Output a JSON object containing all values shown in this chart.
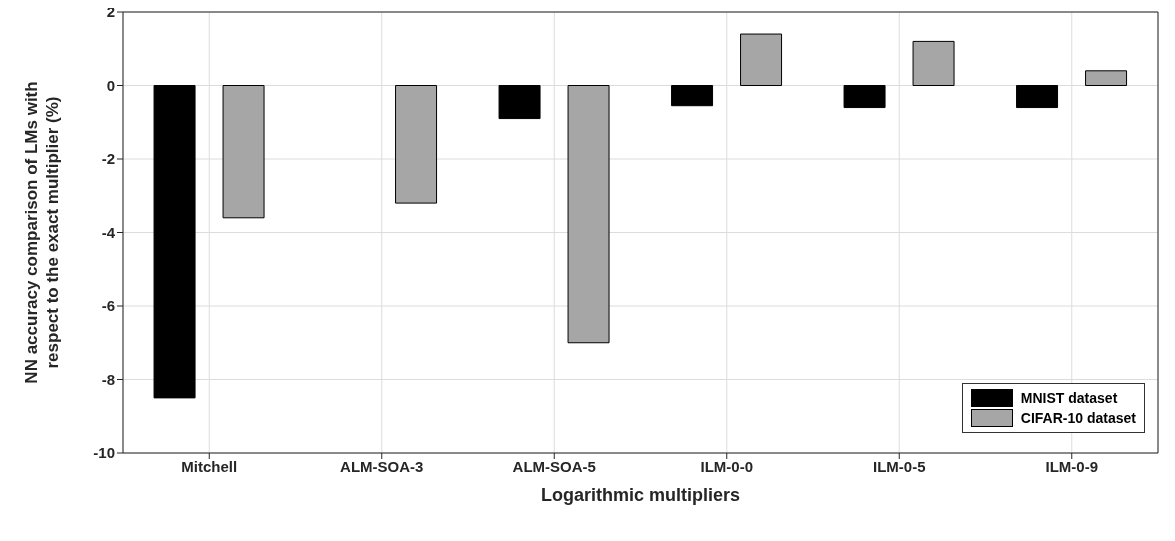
{
  "chart_data": {
    "type": "bar",
    "xlabel": "Logarithmic multipliers",
    "ylabel": "NN accuracy comparison of LMs with respect to the exact multiplier (%)",
    "categories": [
      "Mitchell",
      "ALM-SOA-3",
      "ALM-SOA-5",
      "ILM-0-0",
      "ILM-0-5",
      "ILM-0-9"
    ],
    "series": [
      {
        "name": "MNIST dataset",
        "color": "#000000",
        "values": [
          -8.5,
          0,
          -0.9,
          -0.55,
          -0.6,
          -0.6
        ]
      },
      {
        "name": "CIFAR-10 dataset",
        "color": "#a6a6a6",
        "values": [
          -3.6,
          -3.2,
          -7.0,
          1.4,
          1.2,
          0.4
        ]
      }
    ],
    "ylim": [
      -10,
      2
    ],
    "yticks": [
      -10,
      -8,
      -6,
      -4,
      -2,
      0,
      2
    ],
    "grid": true,
    "legend": "bottom right"
  }
}
